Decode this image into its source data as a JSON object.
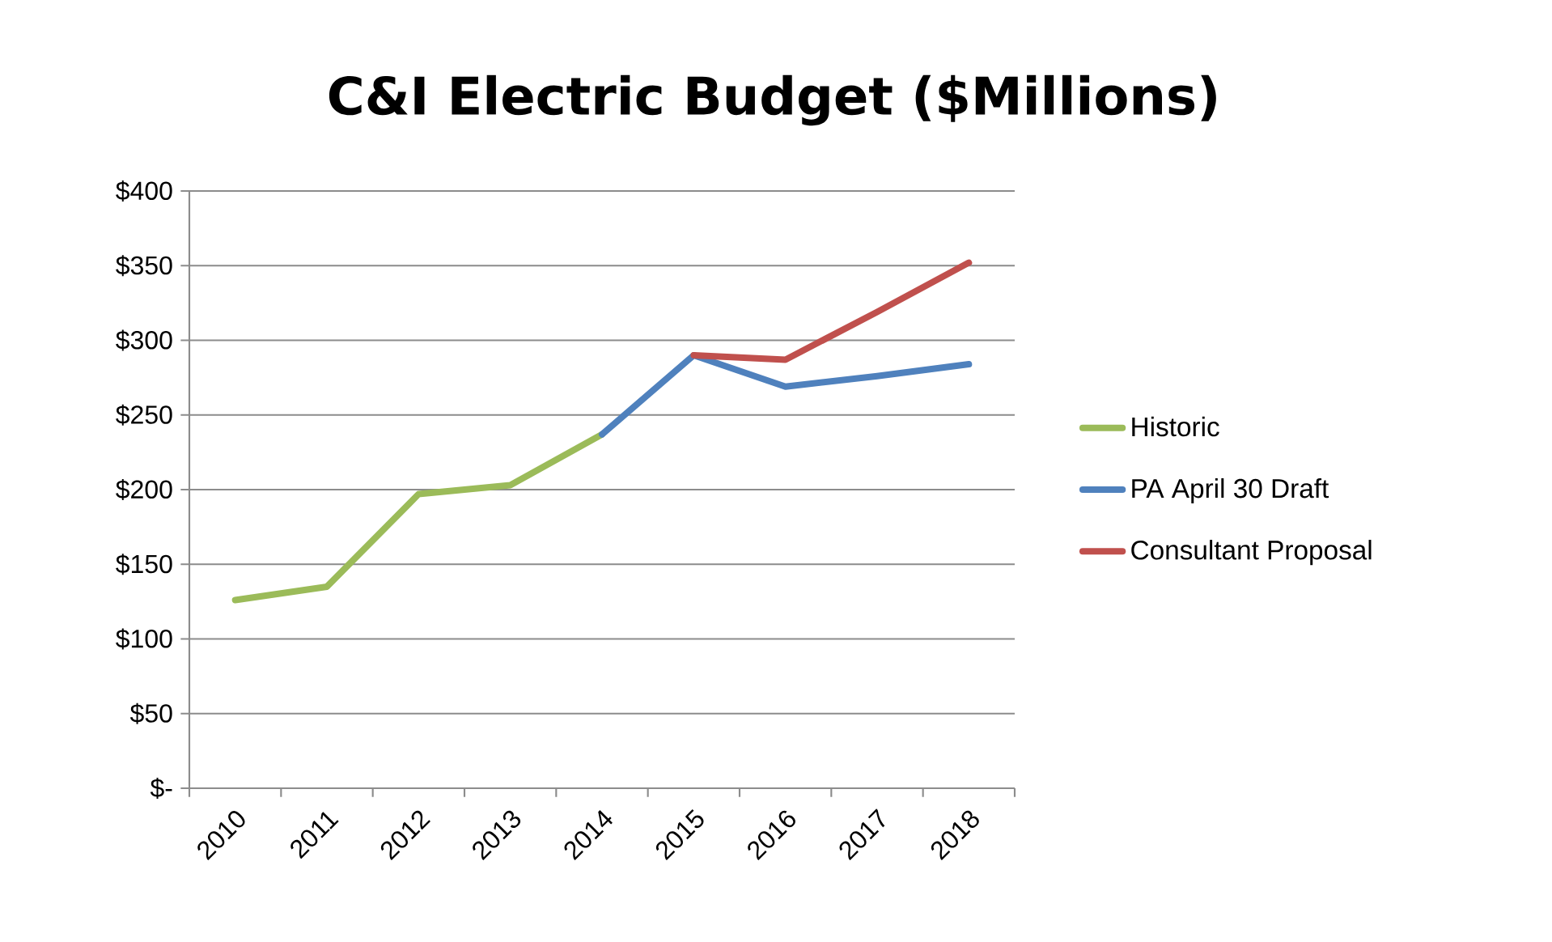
{
  "chart_data": {
    "type": "line",
    "title": "C&I Electric Budget ($Millions)",
    "categories": [
      "2010",
      "2011",
      "2012",
      "2013",
      "2014",
      "2015",
      "2016",
      "2017",
      "2018"
    ],
    "series": [
      {
        "name": "Historic",
        "color": "#9bbb59",
        "values": [
          126,
          135,
          197,
          203,
          237,
          null,
          null,
          null,
          null
        ]
      },
      {
        "name": "PA April 30 Draft",
        "color": "#4f81bd",
        "values": [
          null,
          null,
          null,
          null,
          237,
          290,
          269,
          276,
          284
        ]
      },
      {
        "name": "Consultant Proposal",
        "color": "#c0504d",
        "values": [
          null,
          null,
          null,
          null,
          null,
          290,
          287,
          319,
          352
        ]
      }
    ],
    "ylim": [
      0,
      400
    ],
    "yticks": [
      {
        "value": 0,
        "label": "$-"
      },
      {
        "value": 50,
        "label": "$50"
      },
      {
        "value": 100,
        "label": "$100"
      },
      {
        "value": 150,
        "label": "$150"
      },
      {
        "value": 200,
        "label": "$200"
      },
      {
        "value": 250,
        "label": "$250"
      },
      {
        "value": 300,
        "label": "$300"
      },
      {
        "value": 350,
        "label": "$350"
      },
      {
        "value": 400,
        "label": "$400"
      }
    ],
    "grid": "y",
    "legend": "right",
    "marker": "none",
    "line_style": "solid"
  }
}
